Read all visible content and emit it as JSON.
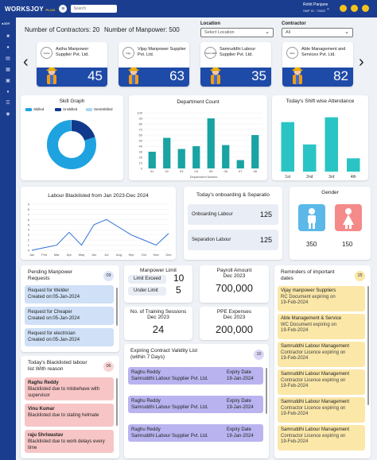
{
  "header": {
    "logo_main": "WORKSJOY",
    "logo_sub": "PLUS",
    "search_placeholder": "Search",
    "user_name": "Rohit Panjane",
    "user_id": "SMP ID : 79822"
  },
  "summary": {
    "contractors_label": "Number of Contractors:",
    "contractors_value": "20",
    "manpower_label": "Number of Manpower:",
    "manpower_value": "500"
  },
  "filters": {
    "location_label": "Location",
    "location_value": "Select Location",
    "contractor_label": "Contractor",
    "contractor_value": "All"
  },
  "contractor_cards": [
    {
      "name": "Astha Manpower Supplier Pvt. Ltd.",
      "count": "45",
      "logo": "Astha"
    },
    {
      "name": "Vijay Manpower Supplier Pvt. Ltd.",
      "count": "63",
      "logo": "Vijay"
    },
    {
      "name": "Samruddhi Labour Supplier Pvt. Ltd.",
      "count": "35",
      "logo": "Samruddhi"
    },
    {
      "name": "Able Management and Services Pvt. Ltd.",
      "count": "82",
      "logo": "Able"
    }
  ],
  "skill_graph": {
    "title": "Skill Graph",
    "legend": [
      "Skilled",
      "Unskilled",
      "SemiSkilled"
    ],
    "colors": {
      "skilled": "#1fa3e0",
      "unskilled": "#123a8c",
      "semiskilled": "#a8d8f0"
    }
  },
  "department_count": {
    "title": "Department Count",
    "xlabel": "Department Names",
    "categories": [
      "01",
      "02",
      "03",
      "04",
      "05",
      "06",
      "07",
      "08"
    ],
    "values": [
      30,
      55,
      35,
      40,
      90,
      42,
      15,
      60
    ],
    "yticks": [
      "0",
      "10",
      "20",
      "30",
      "40",
      "50",
      "60",
      "70",
      "80",
      "90",
      "100"
    ],
    "ylim": [
      0,
      100
    ],
    "color": "#1aa3a3"
  },
  "attendance": {
    "title": "Today's Shift wise Attendance",
    "categories": [
      "1st",
      "2nd",
      "3rd",
      "4th"
    ],
    "values": [
      82,
      45,
      90,
      22
    ],
    "color": "#2bc4c4"
  },
  "blacklist_chart": {
    "title": "Labour Blacklisted from Jan 2023-Dec 2024",
    "months": [
      "Jan",
      "Feb",
      "Mar",
      "Apr",
      "May",
      "Jun",
      "Jul",
      "Aug",
      "Sep",
      "Oct",
      "Nov",
      "Dec"
    ],
    "values": [
      0,
      0.5,
      1,
      3.5,
      1,
      5,
      6,
      4.5,
      3,
      2,
      1,
      3.3
    ],
    "yticks": [
      "0",
      "1",
      "2",
      "3",
      "4",
      "5",
      "6",
      "7",
      "8",
      "9"
    ],
    "ylim": [
      0,
      9
    ]
  },
  "onboarding": {
    "title": "Today's onboarding & Separatio",
    "onboarding_label": "Onboarding Labour",
    "onboarding_value": "125",
    "separation_label": "Separation Labour",
    "separation_value": "125"
  },
  "gender": {
    "title": "Gender",
    "male_value": "350",
    "female_value": "150"
  },
  "pending": {
    "title": "Pending Manpower Requests",
    "count": "09",
    "items": [
      {
        "title": "Request for Welder",
        "sub": "Created on:05-Jan-2024"
      },
      {
        "title": "Request for Cheaper",
        "sub": "Created on:05-Jan-2024"
      },
      {
        "title": "Request for electrician",
        "sub": "Created on:05-Jan-2024"
      }
    ]
  },
  "manpower_limit": {
    "title": "Manpower Limit",
    "exceed_label": "Limit Exceed",
    "exceed_value": "10",
    "under_label": "Under Limit",
    "under_value": "5"
  },
  "payroll": {
    "title": "Payroll Amount",
    "period": "Dec 2023",
    "value": "700,000"
  },
  "training": {
    "title": "No. of Training Sessions",
    "period": "Dec 2023",
    "value": "24"
  },
  "ppe": {
    "title": "PPE Expenses",
    "period": "Dec 2023",
    "value": "200,000"
  },
  "reminders": {
    "title": "Reminders of important dates",
    "count": "15",
    "items": [
      {
        "title": "Vijay manpower Suppliers",
        "line2": "RC Document expiring on",
        "line3": "19-Feb-2024"
      },
      {
        "title": "Able Management & Service",
        "line2": "WC Document expiring on",
        "line3": "19-Feb-2024"
      },
      {
        "title": "Samruddhi Labour Management",
        "line2": "Contractor Licence expiring on",
        "line3": "19-Feb-2024"
      },
      {
        "title": "Samruddhi Labour Management",
        "line2": "Contractor Licence expiring on",
        "line3": "19-Feb-2024"
      },
      {
        "title": "Samruddhi Labour Management",
        "line2": "Contractor Licence expiring on",
        "line3": "19-Feb-2024"
      },
      {
        "title": "Samruddhi Labour Management",
        "line2": "Contractor Licence expiring on",
        "line3": "19-Feb-2024"
      }
    ]
  },
  "blacklisted_today": {
    "title": "Today's Blacklisted labour list With reason",
    "count": "06",
    "items": [
      {
        "name": "Raghu Reddy",
        "reason": "Blacklisted due to misbehave with supervisor"
      },
      {
        "name": "Vinu Kumar",
        "reason": "Blacklisted due to stating helmate"
      },
      {
        "name": "raju Shriwastav",
        "reason": "Blacklisted due to work delays every time"
      }
    ]
  },
  "expiring": {
    "title": "Expiring Contract Validity List (within 7 Days)",
    "count": "10",
    "items": [
      {
        "name": "Raghu Reddy",
        "company": "Samruddhi Labour Supplier Pvt. Ltd.",
        "label": "Expiry Date",
        "date": "19-Jan-2024"
      },
      {
        "name": "Raghu Reddy",
        "company": "Samruddhi Labour Supplier Pvt. Ltd.",
        "label": "Expiry Date",
        "date": "19-Jan-2024"
      },
      {
        "name": "Raghu Reddy",
        "company": "Samruddhi Labour Supplier Pvt. Ltd.",
        "label": "Expiry Date",
        "date": "19-Jan-2024"
      }
    ]
  }
}
